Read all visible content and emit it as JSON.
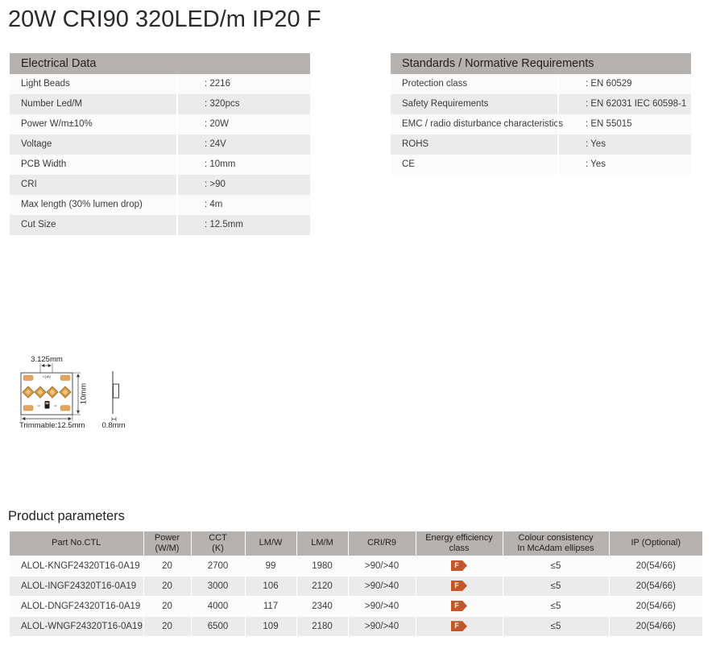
{
  "page_title": "20W CRI90 320LED/m IP20 F",
  "electrical_table": {
    "header": "Electrical Data",
    "rows": [
      {
        "label": "Light Beads",
        "value": ": 2216"
      },
      {
        "label": "Number Led/M",
        "value": ": 320pcs"
      },
      {
        "label": "Power W/m±10%",
        "value": ": 20W"
      },
      {
        "label": "Voltage",
        "value": ": 24V"
      },
      {
        "label": "PCB Width",
        "value": ": 10mm"
      },
      {
        "label": "CRI",
        "value": ": >90"
      },
      {
        "label": "Max length (30% lumen drop)",
        "value": ": 4m"
      },
      {
        "label": "Cut Size",
        "value": ": 12.5mm"
      }
    ]
  },
  "standards_table": {
    "header": "Standards / Normative Requirements",
    "rows": [
      {
        "label": "Protection class",
        "value": ": EN 60529"
      },
      {
        "label": "Safety Requirements",
        "value": ": EN 62031 IEC 60598-1"
      },
      {
        "label": "EMC / radio disturbance characteristics",
        "value": ": EN 55015"
      },
      {
        "label": "ROHS",
        "value": ": Yes"
      },
      {
        "label": "CE",
        "value": ": Yes"
      }
    ]
  },
  "diagram": {
    "pitch_label": "3.125mm",
    "voltage_label": "+24V",
    "height_label": "10mm",
    "trim_label": "Trimmable:12.5mm",
    "thickness_label": "0.8mm"
  },
  "product_table": {
    "heading": "Product parameters",
    "columns": [
      "Part No.CTL",
      "Power\n(W/M)",
      "CCT\n(K)",
      "LM/W",
      "LM/M",
      "CRI/R9",
      "Energy efficiency\nclass",
      "Colour consistency\nIn McAdam ellipses",
      "IP (Optional)"
    ],
    "rows": [
      {
        "part_no": "ALOL-KNGF24320T16-0A19",
        "power": "20",
        "cct": "2700",
        "lm_w": "99",
        "lm_m": "1980",
        "cri_r9": ">90/>40",
        "energy_class": "F",
        "mcadam": "≤5",
        "ip": "20(54/66)"
      },
      {
        "part_no": "ALOL-INGF24320T16-0A19",
        "power": "20",
        "cct": "3000",
        "lm_w": "106",
        "lm_m": "2120",
        "cri_r9": ">90/>40",
        "energy_class": "F",
        "mcadam": "≤5",
        "ip": "20(54/66)"
      },
      {
        "part_no": "ALOL-DNGF24320T16-0A19",
        "power": "20",
        "cct": "4000",
        "lm_w": "117",
        "lm_m": "2340",
        "cri_r9": ">90/>40",
        "energy_class": "F",
        "mcadam": "≤5",
        "ip": "20(54/66)"
      },
      {
        "part_no": "ALOL-WNGF24320T16-0A19",
        "power": "20",
        "cct": "6500",
        "lm_w": "109",
        "lm_m": "2180",
        "cri_r9": ">90/>40",
        "energy_class": "F",
        "mcadam": "≤5",
        "ip": "20(54/66)"
      }
    ]
  },
  "colors": {
    "table_header_bg": "#b5b2af",
    "row_alt_bg": "#ebebeb",
    "row_bg": "#fbfbfb",
    "energy_badge": "#c2572c",
    "pad_gold": "#e2a55b",
    "led_gold": "#d9993f"
  }
}
